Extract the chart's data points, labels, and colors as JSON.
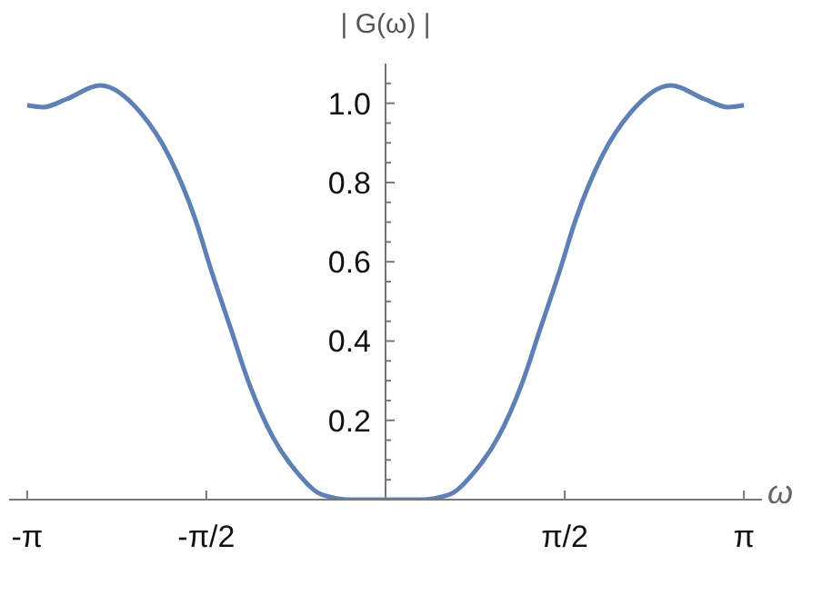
{
  "chart_data": {
    "type": "line",
    "xlabel": "ω",
    "ylabel": "| G(ω) |",
    "x": [
      -3.1416,
      -3.0,
      -2.8,
      -2.5,
      -2.15,
      -1.89,
      -1.67,
      -1.52,
      -1.36,
      -1.2,
      -0.99,
      -0.77,
      -0.56,
      -0.3,
      0,
      0.3,
      0.56,
      0.77,
      0.99,
      1.2,
      1.36,
      1.52,
      1.67,
      1.89,
      2.15,
      2.5,
      2.8,
      3.0,
      3.1416
    ],
    "series": [
      {
        "color": "#5e81b5",
        "values": [
          0.995,
          0.99,
          1.01,
          1.045,
          0.977,
          0.862,
          0.709,
          0.571,
          0.434,
          0.296,
          0.159,
          0.067,
          0.013,
          0.0,
          0.0,
          0.0,
          0.013,
          0.067,
          0.159,
          0.296,
          0.434,
          0.571,
          0.709,
          0.862,
          0.977,
          1.045,
          1.01,
          0.99,
          0.995
        ]
      }
    ],
    "xlim": [
      -3.3,
      3.3
    ],
    "xticks": [
      {
        "value": -3.1416,
        "label": "-π"
      },
      {
        "value": -1.5708,
        "label": "-π/2"
      },
      {
        "value": 1.5708,
        "label": "π/2"
      },
      {
        "value": 3.1416,
        "label": "π"
      }
    ],
    "ylim": [
      0,
      1.1
    ],
    "yticks": [
      {
        "value": 0.05,
        "label": null
      },
      {
        "value": 0.1,
        "label": null
      },
      {
        "value": 0.15,
        "label": null
      },
      0.2,
      {
        "value": 0.25,
        "label": null
      },
      {
        "value": 0.3,
        "label": null
      },
      {
        "value": 0.35,
        "label": null
      },
      0.4,
      {
        "value": 0.45,
        "label": null
      },
      {
        "value": 0.5,
        "label": null
      },
      {
        "value": 0.55,
        "label": null
      },
      0.6,
      {
        "value": 0.65,
        "label": null
      },
      {
        "value": 0.7,
        "label": null
      },
      {
        "value": 0.75,
        "label": null
      },
      0.8,
      {
        "value": 0.85,
        "label": null
      },
      {
        "value": 0.9,
        "label": null
      },
      {
        "value": 0.95,
        "label": null
      },
      {
        "value": 1.0,
        "label": "1.0"
      },
      {
        "value": 1.05,
        "label": null
      }
    ],
    "grid": false,
    "legend": false,
    "marker": "none",
    "line_style": "solid"
  }
}
